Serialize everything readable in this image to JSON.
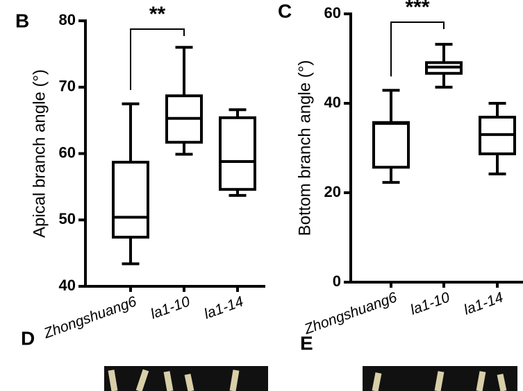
{
  "chart_data": [
    {
      "type": "box",
      "panel": "B",
      "ylabel": "Apical branch angle (°)",
      "categories": [
        "Zhongshuang6",
        "la1-10",
        "la1-14"
      ],
      "min": [
        43.4,
        59.9,
        53.7
      ],
      "q1": [
        47.4,
        61.7,
        54.6
      ],
      "median": [
        50.4,
        65.3,
        58.8
      ],
      "q3": [
        58.7,
        68.7,
        65.4
      ],
      "max": [
        67.5,
        76.0,
        66.6
      ],
      "ylim": [
        40,
        80
      ],
      "yticks": [
        40,
        50,
        60,
        70,
        80
      ],
      "significance": "**",
      "color": "#000000"
    },
    {
      "type": "box",
      "panel": "C",
      "ylabel": "Bottom branch angle (°)",
      "categories": [
        "Zhongshuang6",
        "la1-10",
        "la1-14"
      ],
      "min": [
        22.3,
        43.6,
        24.2
      ],
      "q1": [
        25.7,
        46.7,
        28.7
      ],
      "median": [
        35.5,
        48.1,
        33.0
      ],
      "q3": [
        35.7,
        49.1,
        36.9
      ],
      "max": [
        42.9,
        53.2,
        40.0
      ],
      "ylim": [
        0,
        60
      ],
      "yticks": [
        0,
        20,
        40,
        60
      ],
      "significance": "***",
      "color": "#000000"
    }
  ],
  "panel_labels": [
    "D",
    "E"
  ]
}
